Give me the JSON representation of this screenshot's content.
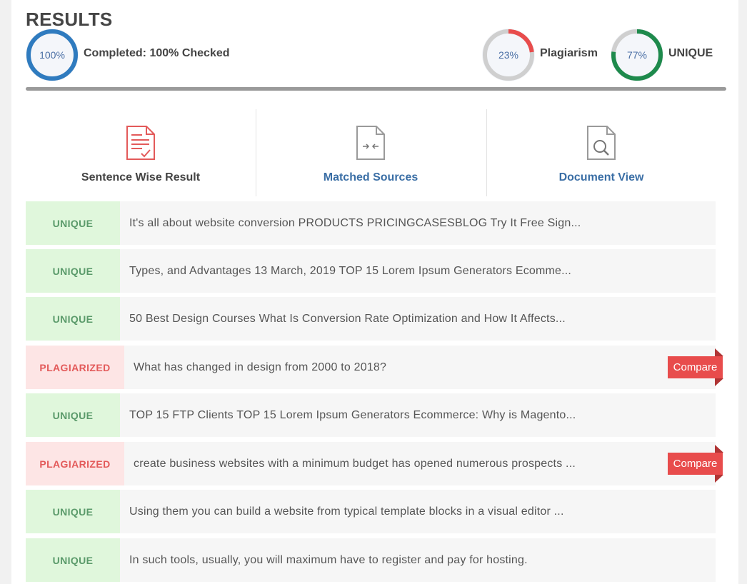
{
  "header": {
    "title": "RESULTS",
    "completed": {
      "percent_text": "100%",
      "label": "Completed: 100% Checked",
      "fraction": 1.0,
      "color": "#2f7bbf"
    },
    "plagiarism": {
      "percent_text": "23%",
      "label": "Plagiarism",
      "fraction": 0.23,
      "color": "#e84c4c"
    },
    "unique": {
      "percent_text": "77%",
      "label": "UNIQUE",
      "fraction": 0.77,
      "color": "#1e8a4c"
    }
  },
  "tabs": [
    {
      "label": "Sentence Wise Result",
      "icon": "document-check-icon",
      "active": true
    },
    {
      "label": "Matched Sources",
      "icon": "document-compare-icon",
      "active": false
    },
    {
      "label": "Document View",
      "icon": "document-search-icon",
      "active": false
    }
  ],
  "colors": {
    "link": "#3a6ea5",
    "unique_badge_bg": "#e0f7dc",
    "plag_badge_bg": "#fde5e5",
    "compare_bg": "#e84c4c"
  },
  "compare_label": "Compare",
  "rows": [
    {
      "status": "UNIQUE",
      "text": "It's all about website conversion PRODUCTS PRICINGCASESBLOG Try It Free Sign..."
    },
    {
      "status": "UNIQUE",
      "text": "Types, and Advantages 13 March, 2019 TOP 15 Lorem Ipsum Generators Ecomme..."
    },
    {
      "status": "UNIQUE",
      "text": "50 Best Design Courses What Is Conversion Rate Optimization and How It Affects..."
    },
    {
      "status": "PLAGIARIZED",
      "text": "What has changed in design from 2000 to 2018?"
    },
    {
      "status": "UNIQUE",
      "text": "TOP 15 FTP Clients TOP 15 Lorem Ipsum Generators Ecommerce: Why is Magento..."
    },
    {
      "status": "PLAGIARIZED",
      "text": "create business websites with a minimum budget has opened numerous prospects ..."
    },
    {
      "status": "UNIQUE",
      "text": "Using them you can build a website from typical template blocks in a visual editor ..."
    },
    {
      "status": "UNIQUE",
      "text": "In such tools, usually, you will maximum have to register and pay for hosting."
    }
  ]
}
